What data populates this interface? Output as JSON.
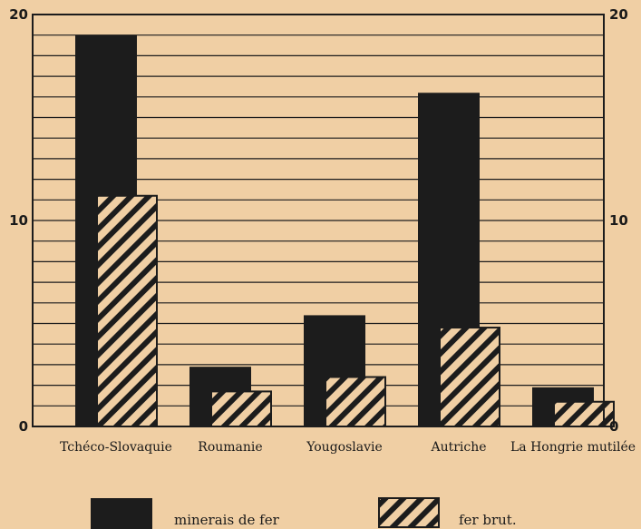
{
  "chart_data": {
    "type": "bar",
    "categories": [
      "Tchéco-Slovaquie",
      "Roumanie",
      "Yougoslavie",
      "Autriche",
      "La Hongrie mutilée"
    ],
    "series": [
      {
        "name": "minerais de fer",
        "values": [
          19.0,
          2.9,
          5.4,
          16.2,
          1.9
        ],
        "pattern": "solid",
        "color": "#1c1c1c"
      },
      {
        "name": "fer brut.",
        "values": [
          11.2,
          1.7,
          2.4,
          4.8,
          1.2
        ],
        "pattern": "hatched",
        "color": "#1c1c1c"
      }
    ],
    "ylim": [
      0,
      20
    ],
    "yticks": [
      "0",
      "10",
      "20"
    ],
    "yticks_right": [
      "0",
      "10",
      "20"
    ],
    "grid": true,
    "legend_position": "bottom",
    "title": "",
    "xlabel": "",
    "ylabel": ""
  },
  "colors": {
    "background": "#f0cfa4",
    "ink": "#1c1c1c"
  }
}
